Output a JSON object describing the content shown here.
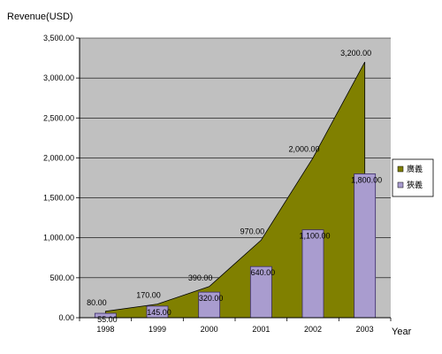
{
  "chart_data": {
    "type": "bar+area",
    "ylabel": "Revenue(USD)",
    "xlabel": "Year",
    "ylim": [
      0,
      3500
    ],
    "yticks": [
      0,
      500,
      1000,
      1500,
      2000,
      2500,
      3000,
      3500
    ],
    "ytick_labels": [
      "0.00",
      "500.00",
      "1,000.00",
      "1,500.00",
      "2,000.00",
      "2,500.00",
      "3,000.00",
      "3,500.00"
    ],
    "categories": [
      "1998",
      "1999",
      "2000",
      "2001",
      "2002",
      "2003"
    ],
    "grid": true,
    "legend_position": "right",
    "series": [
      {
        "name": "廣義",
        "kind": "area",
        "color": "#808000",
        "values": [
          80,
          170,
          390,
          970,
          2000,
          3200
        ],
        "labels": [
          "80.00",
          "170.00",
          "390.00",
          "970.00",
          "2,000.00",
          "3,200.00"
        ]
      },
      {
        "name": "狹義",
        "kind": "bar",
        "color": "#a99ccf",
        "values": [
          55,
          145,
          320,
          640,
          1100,
          1800
        ],
        "labels": [
          "55.00",
          "145.00",
          "320.00",
          "640.00",
          "1,100.00",
          "1,800.00"
        ]
      }
    ],
    "colors": {
      "plot_background": "#c0c0c0",
      "bar_border": "#3a2a6a",
      "axis": "#000000"
    }
  }
}
